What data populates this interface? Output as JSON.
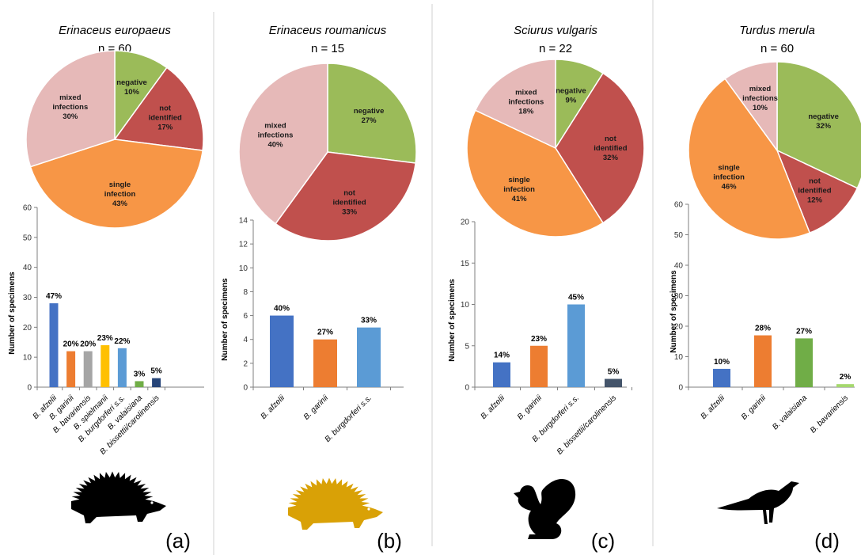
{
  "colors": {
    "negative": "#9bbb59",
    "not_identified": "#c0504d",
    "single": "#f79646",
    "mixed": "#e6b9b8",
    "divider": "#d9d9d9",
    "silhouette_black": "#000000",
    "silhouette_gold": "#d9a106"
  },
  "chart_data": [
    {
      "type": "pie",
      "title": "Erinaceus europaeus",
      "subtitle": "n = 60",
      "panel_label": "(a)",
      "silhouette": "hedgehog-icon",
      "slices": [
        {
          "name": "negative",
          "lines": [
            "negative",
            "10%"
          ],
          "value": 10,
          "color": "#9bbb59"
        },
        {
          "name": "not identified",
          "lines": [
            "not",
            "identified",
            "17%"
          ],
          "value": 17,
          "color": "#c0504d"
        },
        {
          "name": "single infection",
          "lines": [
            "single",
            "infection",
            "43%"
          ],
          "value": 43,
          "color": "#f79646"
        },
        {
          "name": "mixed infections",
          "lines": [
            "mixed",
            "infections",
            "30%"
          ],
          "value": 30,
          "color": "#e6b9b8"
        }
      ]
    },
    {
      "type": "bar",
      "ylabel": "Number of specimens",
      "ylim": [
        0,
        60
      ],
      "yticks": [
        0,
        10,
        20,
        30,
        40,
        50,
        60
      ],
      "categories": [
        "B. afzelii",
        "B. garinii",
        "B. bavariensis",
        "B. spielmanii",
        "B. burgdorferi s.s.",
        "B. valaisiana",
        "B. bissettii/carolinensis"
      ],
      "values": [
        28,
        12,
        12,
        14,
        13,
        2,
        3
      ],
      "labels": [
        "47%",
        "20%",
        "20%",
        "23%",
        "22%",
        "3%",
        "5%"
      ],
      "colors": [
        "#4472c4",
        "#ed7d31",
        "#a5a5a5",
        "#ffc000",
        "#5b9bd5",
        "#70ad47",
        "#264478"
      ]
    },
    {
      "type": "pie",
      "title": "Erinaceus roumanicus",
      "subtitle": "n = 15",
      "panel_label": "(b)",
      "silhouette": "hedgehog-icon",
      "slices": [
        {
          "name": "negative",
          "lines": [
            "negative",
            "27%"
          ],
          "value": 27,
          "color": "#9bbb59"
        },
        {
          "name": "not identified",
          "lines": [
            "not",
            "identified",
            "33%"
          ],
          "value": 33,
          "color": "#c0504d"
        },
        {
          "name": "mixed infections",
          "lines": [
            "mixed",
            "infections",
            "40%"
          ],
          "value": 40,
          "color": "#e6b9b8"
        }
      ]
    },
    {
      "type": "bar",
      "ylabel": "Number of specimens",
      "ylim": [
        0,
        14
      ],
      "yticks": [
        0,
        2,
        4,
        6,
        8,
        10,
        12,
        14
      ],
      "categories": [
        "B. afzelii",
        "B. garinii",
        "B. burgdorferi s.s."
      ],
      "values": [
        6,
        4,
        5
      ],
      "labels": [
        "40%",
        "27%",
        "33%"
      ],
      "colors": [
        "#4472c4",
        "#ed7d31",
        "#5b9bd5"
      ]
    },
    {
      "type": "pie",
      "title": "Sciurus vulgaris",
      "subtitle": "n = 22",
      "panel_label": "(c)",
      "silhouette": "squirrel-icon",
      "slices": [
        {
          "name": "negative",
          "lines": [
            "negative",
            "9%"
          ],
          "value": 9,
          "color": "#9bbb59"
        },
        {
          "name": "not identified",
          "lines": [
            "not",
            "identified",
            "32%"
          ],
          "value": 32,
          "color": "#c0504d"
        },
        {
          "name": "single infection",
          "lines": [
            "single",
            "infection",
            "41%"
          ],
          "value": 41,
          "color": "#f79646"
        },
        {
          "name": "mixed infections",
          "lines": [
            "mixed",
            "infections",
            "18%"
          ],
          "value": 18,
          "color": "#e6b9b8"
        }
      ]
    },
    {
      "type": "bar",
      "ylabel": "Number of specimens",
      "ylim": [
        0,
        20
      ],
      "yticks": [
        0,
        5,
        10,
        15,
        20
      ],
      "categories": [
        "B. afzelii",
        "B. garinii",
        "B. burgdorferi s.s.",
        "B. bissettii/carolinensis"
      ],
      "values": [
        3,
        5,
        10,
        1
      ],
      "labels": [
        "14%",
        "23%",
        "45%",
        "5%"
      ],
      "colors": [
        "#4472c4",
        "#ed7d31",
        "#5b9bd5",
        "#44546a"
      ]
    },
    {
      "type": "pie",
      "title": "Turdus merula",
      "subtitle": "n = 60",
      "panel_label": "(d)",
      "silhouette": "blackbird-icon",
      "slices": [
        {
          "name": "negative",
          "lines": [
            "negative",
            "32%"
          ],
          "value": 32,
          "color": "#9bbb59"
        },
        {
          "name": "not identified",
          "lines": [
            "not",
            "identified",
            "12%"
          ],
          "value": 12,
          "color": "#c0504d"
        },
        {
          "name": "single infection",
          "lines": [
            "single",
            "infection",
            "46%"
          ],
          "value": 46,
          "color": "#f79646"
        },
        {
          "name": "mixed infections",
          "lines": [
            "mixed",
            "infections",
            "10%"
          ],
          "value": 10,
          "color": "#e6b9b8"
        }
      ]
    },
    {
      "type": "bar",
      "ylabel": "Number of specimens",
      "ylim": [
        0,
        60
      ],
      "yticks": [
        0,
        10,
        20,
        30,
        40,
        50,
        60
      ],
      "categories": [
        "B. afzelii",
        "B. garinii",
        "B. valaisiana",
        "B. bavariensis"
      ],
      "values": [
        6,
        17,
        16,
        1
      ],
      "labels": [
        "10%",
        "28%",
        "27%",
        "2%"
      ],
      "colors": [
        "#4472c4",
        "#ed7d31",
        "#70ad47",
        "#a5d86e"
      ]
    }
  ]
}
